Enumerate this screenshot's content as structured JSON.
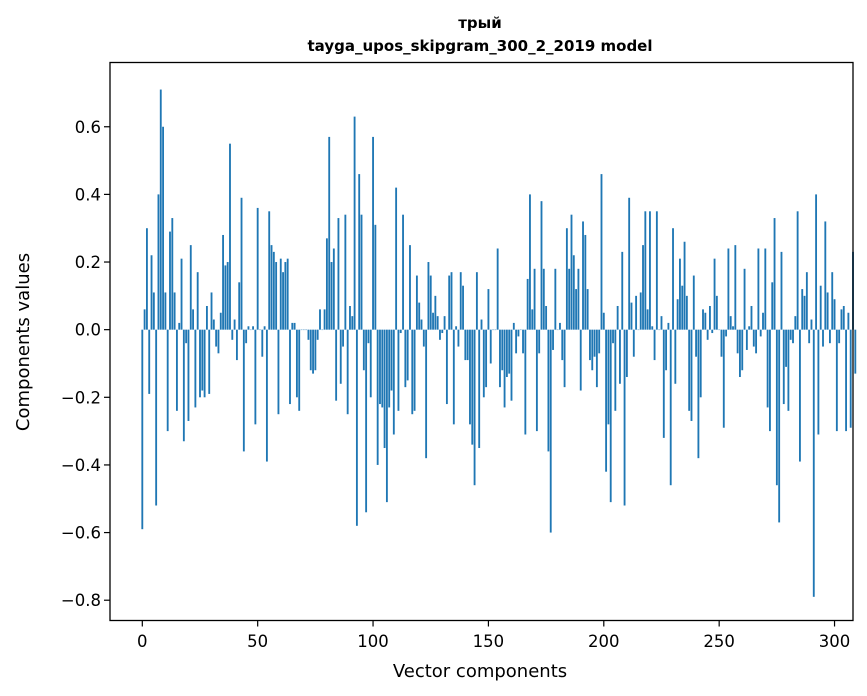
{
  "chart_data": {
    "type": "bar",
    "title": "трый",
    "subtitle": "tayga_upos_skipgram_300_2_2019 model",
    "xlabel": "Vector components",
    "ylabel": "Components values",
    "xlim": [
      -14,
      308
    ],
    "ylim": [
      -0.86,
      0.79
    ],
    "xticks": [
      0,
      50,
      100,
      150,
      200,
      250,
      300
    ],
    "xtick_labels": [
      "0",
      "50",
      "100",
      "150",
      "200",
      "250",
      "300"
    ],
    "yticks": [
      -0.8,
      -0.6,
      -0.4,
      -0.2,
      0.0,
      0.2,
      0.4,
      0.6
    ],
    "ytick_labels": [
      "−0.8",
      "−0.6",
      "−0.4",
      "−0.2",
      "0.0",
      "0.2",
      "0.4",
      "0.6"
    ],
    "bar_color": "#1f77b4",
    "values": [
      -0.59,
      0.06,
      0.3,
      -0.19,
      0.22,
      0.11,
      -0.52,
      0.4,
      0.71,
      0.6,
      0.11,
      -0.3,
      0.29,
      0.33,
      0.11,
      -0.24,
      0.02,
      0.21,
      -0.33,
      -0.04,
      -0.27,
      0.25,
      0.06,
      -0.23,
      0.17,
      -0.2,
      -0.18,
      -0.2,
      0.07,
      -0.19,
      0.11,
      0.03,
      -0.05,
      -0.07,
      0.05,
      0.28,
      0.19,
      0.2,
      0.55,
      -0.03,
      0.03,
      -0.09,
      0.14,
      0.39,
      -0.36,
      -0.04,
      0.01,
      0.0,
      0.01,
      -0.28,
      0.36,
      0.0,
      -0.08,
      0.01,
      -0.39,
      0.35,
      0.25,
      0.23,
      0.2,
      -0.25,
      0.21,
      0.17,
      0.2,
      0.21,
      -0.22,
      0.02,
      0.02,
      -0.2,
      -0.24,
      0.0,
      0.0,
      0.0,
      -0.03,
      -0.12,
      -0.13,
      -0.12,
      -0.03,
      0.06,
      0.0,
      0.06,
      0.27,
      0.57,
      0.2,
      0.24,
      -0.21,
      0.33,
      -0.16,
      -0.05,
      0.34,
      -0.25,
      0.07,
      0.04,
      0.63,
      -0.58,
      0.46,
      0.34,
      -0.12,
      -0.54,
      -0.04,
      -0.2,
      0.57,
      0.31,
      -0.4,
      -0.22,
      -0.23,
      -0.35,
      -0.51,
      -0.23,
      -0.18,
      -0.31,
      0.42,
      -0.24,
      -0.01,
      0.34,
      -0.17,
      -0.15,
      0.25,
      -0.25,
      -0.24,
      0.16,
      0.08,
      0.03,
      -0.05,
      -0.38,
      0.2,
      0.16,
      0.05,
      0.1,
      0.04,
      -0.03,
      -0.01,
      0.04,
      -0.22,
      0.16,
      0.17,
      -0.28,
      0.01,
      -0.05,
      0.17,
      0.13,
      -0.09,
      -0.09,
      -0.28,
      -0.34,
      -0.46,
      0.17,
      -0.35,
      0.03,
      -0.2,
      -0.17,
      0.12,
      -0.1,
      0.0,
      0.0,
      0.24,
      -0.17,
      -0.12,
      -0.23,
      -0.14,
      -0.13,
      -0.21,
      0.02,
      -0.07,
      -0.02,
      0.0,
      -0.07,
      -0.31,
      0.15,
      0.4,
      0.06,
      0.18,
      -0.3,
      -0.07,
      0.38,
      0.18,
      0.07,
      -0.36,
      -0.6,
      -0.06,
      0.18,
      0.0,
      0.02,
      -0.09,
      -0.17,
      0.3,
      0.18,
      0.34,
      0.22,
      0.12,
      0.18,
      -0.18,
      0.32,
      0.28,
      0.12,
      -0.09,
      -0.12,
      -0.08,
      -0.17,
      -0.07,
      0.46,
      0.05,
      -0.42,
      -0.28,
      -0.51,
      -0.04,
      -0.24,
      0.07,
      -0.16,
      0.23,
      -0.52,
      -0.14,
      0.39,
      0.08,
      -0.08,
      0.1,
      0.0,
      0.11,
      0.25,
      0.35,
      0.06,
      0.35,
      0.01,
      -0.09,
      0.35,
      0.0,
      0.04,
      -0.32,
      -0.12,
      0.02,
      -0.46,
      0.3,
      -0.16,
      0.09,
      0.21,
      0.13,
      0.26,
      0.1,
      -0.24,
      -0.27,
      0.16,
      -0.08,
      -0.38,
      -0.2,
      0.06,
      0.05,
      -0.03,
      0.07,
      -0.01,
      0.21,
      0.1,
      0.0,
      -0.08,
      -0.29,
      -0.02,
      0.24,
      0.04,
      0.01,
      0.25,
      -0.07,
      -0.14,
      -0.12,
      0.18,
      -0.06,
      0.01,
      0.07,
      -0.05,
      -0.07,
      0.24,
      -0.02,
      0.05,
      0.24,
      -0.23,
      -0.3,
      0.14,
      0.33,
      -0.46,
      -0.57,
      0.23,
      -0.22,
      -0.11,
      -0.24,
      -0.03,
      -0.04,
      0.04,
      0.35,
      -0.39,
      0.12,
      0.1,
      0.17,
      -0.04,
      0.03,
      -0.79,
      0.4,
      -0.31,
      0.13,
      -0.05,
      0.32,
      0.11,
      -0.04,
      0.17,
      0.09,
      -0.3,
      -0.04,
      0.06,
      0.07,
      -0.3,
      0.05,
      -0.29,
      0.23,
      -0.13
    ]
  }
}
